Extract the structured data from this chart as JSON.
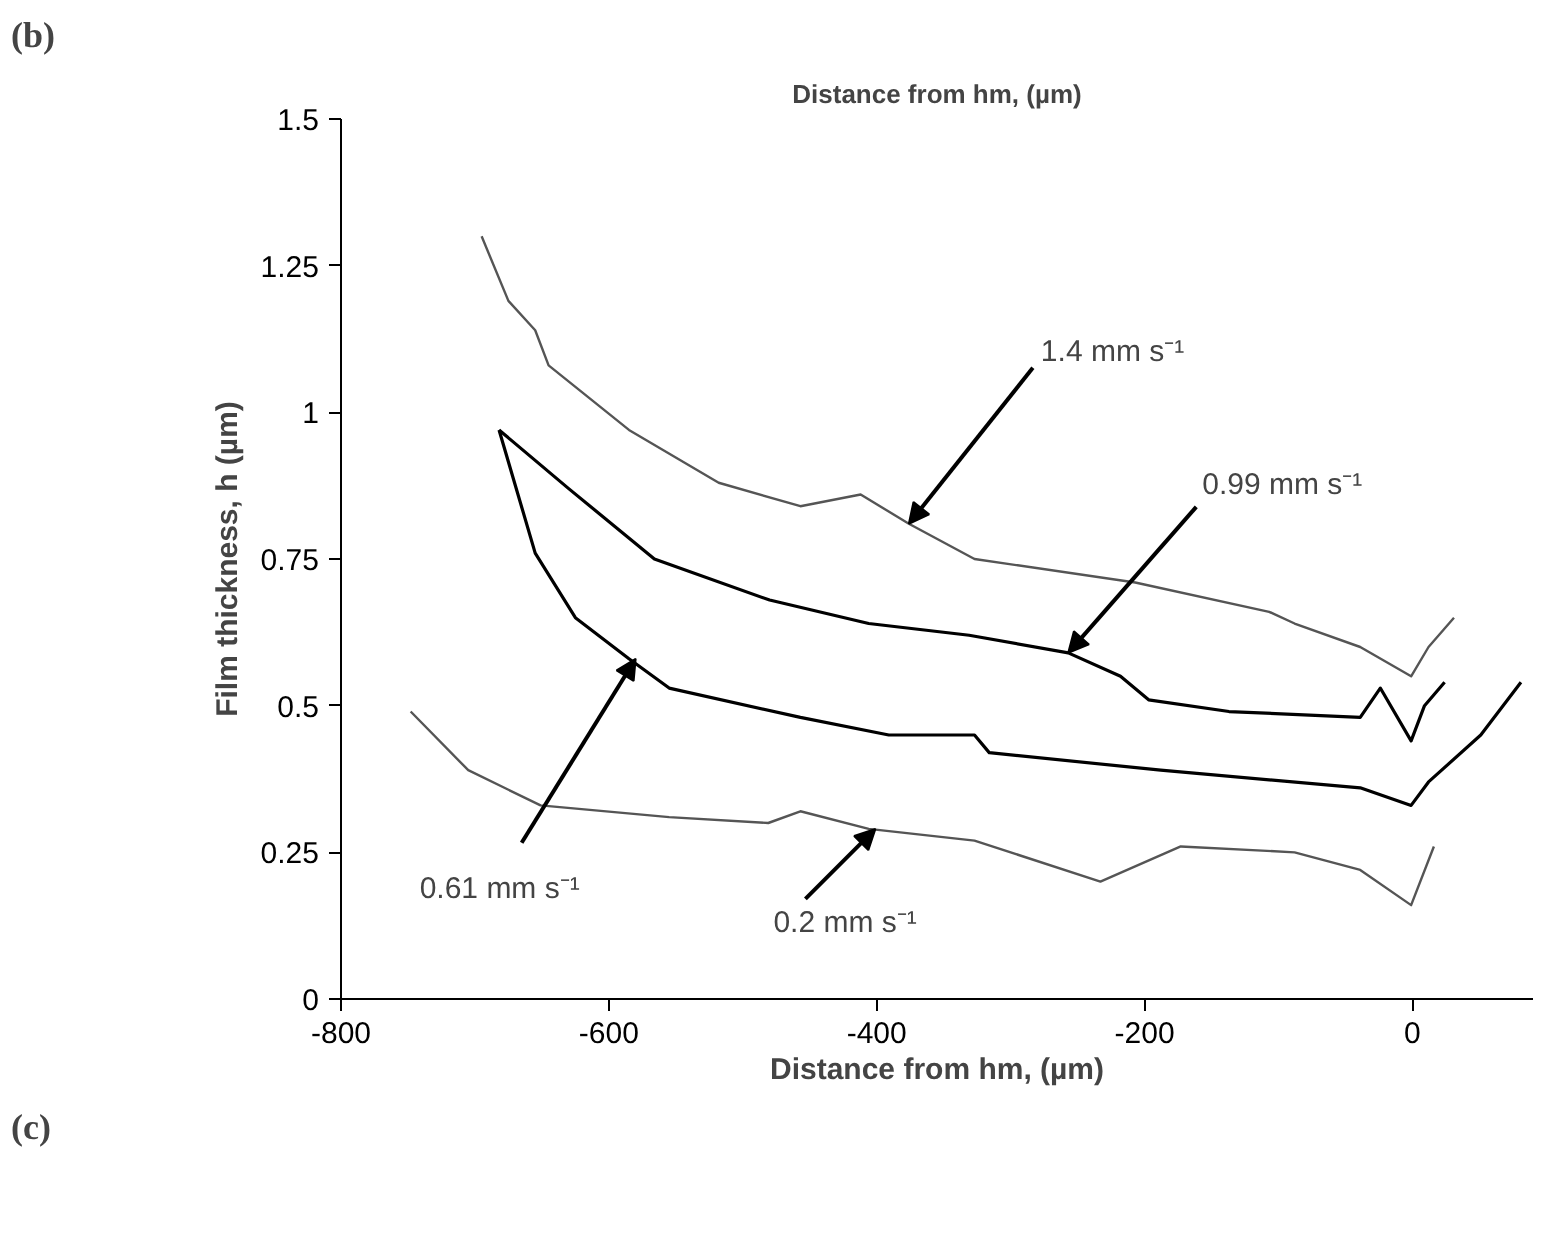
{
  "chart_data": {
    "type": "line",
    "xlabel": "Distance from hm, (µm)",
    "ylabel": "Film thickness, h (µm)",
    "xlim": [
      -800,
      90
    ],
    "ylim": [
      0,
      1.5
    ],
    "xticks": [
      -800,
      -600,
      -400,
      -200,
      0
    ],
    "yticks": [
      0,
      0.25,
      0.5,
      0.75,
      1,
      1.25,
      1.5
    ],
    "grid": false,
    "series": [
      {
        "color": "#555555",
        "x": [
          -695,
          -675,
          -655,
          -645,
          -585,
          -518,
          -457,
          -412,
          -376,
          -327,
          -207,
          -107,
          -88,
          -39,
          -1,
          12,
          31
        ],
        "values": [
          1.3,
          1.19,
          1.14,
          1.08,
          0.97,
          0.88,
          0.84,
          0.86,
          0.81,
          0.75,
          0.71,
          0.66,
          0.64,
          0.6,
          0.55,
          0.6,
          0.65
        ]
      },
      {
        "color": "#000000",
        "x": [
          -682,
          -630,
          -566,
          -480,
          -406,
          -331,
          -257,
          -218,
          -197,
          -137,
          -39,
          -24,
          -1,
          9,
          24
        ],
        "values": [
          0.97,
          0.87,
          0.75,
          0.68,
          0.64,
          0.62,
          0.59,
          0.55,
          0.51,
          0.49,
          0.48,
          0.53,
          0.44,
          0.5,
          0.54
        ]
      },
      {
        "color": "#000000",
        "x": [
          -682,
          -655,
          -625,
          -585,
          -555,
          -457,
          -391,
          -327,
          -316,
          -188,
          -39,
          -1,
          12,
          51,
          81
        ],
        "values": [
          0.97,
          0.76,
          0.65,
          0.58,
          0.53,
          0.48,
          0.45,
          0.45,
          0.42,
          0.39,
          0.36,
          0.33,
          0.37,
          0.45,
          0.54
        ]
      },
      {
        "color": "#555555",
        "x": [
          -748,
          -705,
          -651,
          -555,
          -481,
          -457,
          -406,
          -327,
          -233,
          -173,
          -88,
          -39,
          -1,
          16
        ],
        "values": [
          0.49,
          0.39,
          0.33,
          0.31,
          0.3,
          0.32,
          0.29,
          0.27,
          0.2,
          0.26,
          0.25,
          0.22,
          0.16,
          0.26
        ]
      }
    ],
    "annotations": [
      "Distance from hm, (µm)",
      "(b)",
      "(c)",
      {
        "text": "1.4 mm s⁻¹",
        "x": -376,
        "y": 0.81
      },
      {
        "text": "0.99 mm s⁻¹",
        "x": -257,
        "y": 0.59
      },
      {
        "text": "0.61 mm s⁻¹",
        "x": -580,
        "y": 0.58
      },
      {
        "text": "0.2 mm s⁻¹",
        "x": -401,
        "y": 0.29
      }
    ]
  }
}
